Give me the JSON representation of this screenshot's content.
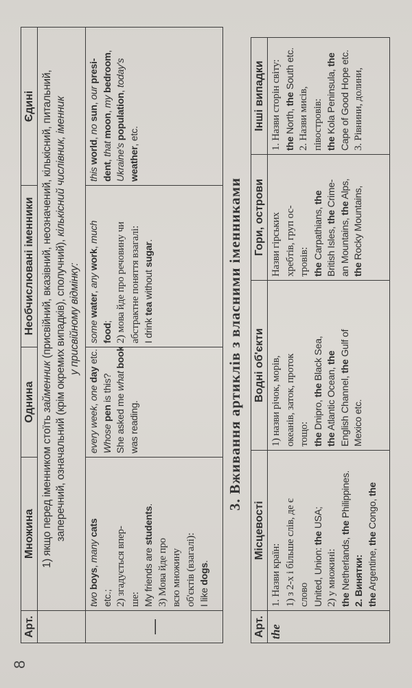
{
  "page_number": "8",
  "table1": {
    "headers": [
      "Арт.",
      "Множина",
      "Однина",
      "Необчислювані іменники",
      "Єдині"
    ],
    "span_row": [
      [
        {
          "t": "1) якщо перед іменником стоїть ",
          "s": ""
        },
        {
          "t": "займенник",
          "s": "i"
        },
        {
          "t": " (присвійний, вказівний, неозначений, кількісний, питальний,",
          "s": ""
        }
      ],
      [
        {
          "t": "заперечний, означальний (крім окремих випадків), сполучний), ",
          "s": ""
        },
        {
          "t": "кількісний числівник, іменник",
          "s": "i"
        }
      ],
      [
        {
          "t": "у присвійному відмінку:",
          "s": "i"
        }
      ]
    ],
    "row_article": "—",
    "cells": [
      [
        [
          {
            "t": "two ",
            "s": "i"
          },
          {
            "t": "boys",
            "s": "b"
          },
          {
            "t": ", ",
            "s": ""
          },
          {
            "t": "many ",
            "s": "i"
          },
          {
            "t": "cats",
            "s": "b"
          }
        ],
        [
          {
            "t": "etc.;",
            "s": ""
          }
        ],
        [
          {
            "t": "2) згадується впер-",
            "s": "serif"
          }
        ],
        [
          {
            "t": "ше:",
            "s": "serif"
          }
        ],
        [
          {
            "t": "My friends are ",
            "s": ""
          },
          {
            "t": "students",
            "s": "b"
          },
          {
            "t": ".",
            "s": ""
          }
        ],
        [
          {
            "t": "3) Мова йде про",
            "s": "serif"
          }
        ],
        [
          {
            "t": "всю множину",
            "s": "serif"
          }
        ],
        [
          {
            "t": "об'єктів (взагалі):",
            "s": "serif"
          }
        ],
        [
          {
            "t": "I like ",
            "s": ""
          },
          {
            "t": "dogs",
            "s": "b"
          },
          {
            "t": ".",
            "s": ""
          }
        ]
      ],
      [
        [
          {
            "t": "every week",
            "s": "i"
          },
          {
            "t": ", ",
            "s": ""
          },
          {
            "t": "one ",
            "s": "i"
          },
          {
            "t": "day",
            "s": "b"
          },
          {
            "t": " etc.",
            "s": ""
          }
        ],
        [
          {
            "t": "Whose ",
            "s": "i"
          },
          {
            "t": "pen",
            "s": "b"
          },
          {
            "t": " is this?",
            "s": ""
          }
        ],
        [
          {
            "t": "She asked me ",
            "s": ""
          },
          {
            "t": "what ",
            "s": "i"
          },
          {
            "t": "book",
            "s": "b"
          },
          {
            "t": " I",
            "s": ""
          }
        ],
        [
          {
            "t": "was reading.",
            "s": ""
          }
        ]
      ],
      [
        [
          {
            "t": "some ",
            "s": "i"
          },
          {
            "t": "water",
            "s": "b"
          },
          {
            "t": ", ",
            "s": ""
          },
          {
            "t": "any ",
            "s": "i"
          },
          {
            "t": "work",
            "s": "b"
          },
          {
            "t": ", ",
            "s": ""
          },
          {
            "t": "much",
            "s": "i"
          }
        ],
        [
          {
            "t": "food",
            "s": "b"
          },
          {
            "t": ";",
            "s": ""
          }
        ],
        [
          {
            "t": "2) мова йде про речовину чи",
            "s": "serif"
          }
        ],
        [
          {
            "t": "абстрактне поняття взагалі:",
            "s": "serif"
          }
        ],
        [
          {
            "t": "I drink ",
            "s": ""
          },
          {
            "t": "tea",
            "s": "b"
          },
          {
            "t": " without ",
            "s": ""
          },
          {
            "t": "sugar",
            "s": "b"
          },
          {
            "t": ".",
            "s": ""
          }
        ]
      ],
      [
        [
          {
            "t": "this ",
            "s": "i"
          },
          {
            "t": "world",
            "s": "b"
          },
          {
            "t": ", ",
            "s": ""
          },
          {
            "t": "no ",
            "s": "i"
          },
          {
            "t": "sun",
            "s": "b"
          },
          {
            "t": ", ",
            "s": ""
          },
          {
            "t": "our ",
            "s": "i"
          },
          {
            "t": "presi-",
            "s": "b"
          }
        ],
        [
          {
            "t": "dent",
            "s": "b"
          },
          {
            "t": ", ",
            "s": ""
          },
          {
            "t": "that ",
            "s": "i"
          },
          {
            "t": "moon",
            "s": "b"
          },
          {
            "t": ", ",
            "s": ""
          },
          {
            "t": "my ",
            "s": "i"
          },
          {
            "t": "bedroom",
            "s": "b"
          },
          {
            "t": ",",
            "s": ""
          }
        ],
        [
          {
            "t": "Ukraine's ",
            "s": "i"
          },
          {
            "t": "population",
            "s": "b"
          },
          {
            "t": ", ",
            "s": ""
          },
          {
            "t": "today's",
            "s": "i"
          }
        ],
        [
          {
            "t": "weather",
            "s": "b"
          },
          {
            "t": ", etc.",
            "s": ""
          }
        ]
      ]
    ]
  },
  "section_title": "3. Вживання артиклів з власними іменниками",
  "table2": {
    "headers": [
      "Арт.",
      "Місцевості",
      "Водні об'єкти",
      "Гори, острови",
      "Інші випадки"
    ],
    "row_article": "the",
    "cells": [
      [
        [
          {
            "t": "1. Назви країн:",
            "s": "serif"
          }
        ],
        [
          {
            "t": "1) з 2-х і більше слів, де є",
            "s": "serif"
          }
        ],
        [
          {
            "t": "слово",
            "s": "serif"
          }
        ],
        [
          {
            "t": "United, Union: ",
            "s": ""
          },
          {
            "t": "the",
            "s": "b"
          },
          {
            "t": " USA;",
            "s": ""
          }
        ],
        [
          {
            "t": "2) у множині:",
            "s": "serif"
          }
        ],
        [
          {
            "t": "the",
            "s": "b"
          },
          {
            "t": " Netherlands, ",
            "s": ""
          },
          {
            "t": "the",
            "s": "b"
          },
          {
            "t": " Philippines.",
            "s": ""
          }
        ],
        [
          {
            "t": "2. Винятки:",
            "s": "b"
          }
        ],
        [
          {
            "t": "the",
            "s": "b"
          },
          {
            "t": " Argentine,  ",
            "s": ""
          },
          {
            "t": "the",
            "s": "b"
          },
          {
            "t": " Congo, ",
            "s": ""
          },
          {
            "t": "the",
            "s": "b"
          }
        ]
      ],
      [
        [
          {
            "t": "1) назви річок, морів,",
            "s": "serif"
          }
        ],
        [
          {
            "t": "океанів, заток, проток",
            "s": "serif"
          }
        ],
        [
          {
            "t": "тощо:",
            "s": "serif"
          }
        ],
        [
          {
            "t": "the",
            "s": "b"
          },
          {
            "t": " Dnipro, ",
            "s": ""
          },
          {
            "t": "the",
            "s": "b"
          },
          {
            "t": " Black Sea,",
            "s": ""
          }
        ],
        [
          {
            "t": "the",
            "s": "b"
          },
          {
            "t": " Atlantic Ocean, ",
            "s": ""
          },
          {
            "t": "the",
            "s": "b"
          }
        ],
        [
          {
            "t": "English Channel, ",
            "s": ""
          },
          {
            "t": "the",
            "s": "b"
          },
          {
            "t": " Gulf of",
            "s": ""
          }
        ],
        [
          {
            "t": "Mexico etc.",
            "s": ""
          }
        ]
      ],
      [
        [
          {
            "t": "Назви гірських",
            "s": "serif"
          }
        ],
        [
          {
            "t": "хребтів, груп ос-",
            "s": "serif"
          }
        ],
        [
          {
            "t": "тровів:",
            "s": "serif"
          }
        ],
        [
          {
            "t": "the",
            "s": "b"
          },
          {
            "t": " Carpathians, ",
            "s": ""
          },
          {
            "t": "the",
            "s": "b"
          }
        ],
        [
          {
            "t": "British Isles, ",
            "s": ""
          },
          {
            "t": "the",
            "s": "b"
          },
          {
            "t": " Crime-",
            "s": ""
          }
        ],
        [
          {
            "t": "an Mountains, ",
            "s": ""
          },
          {
            "t": "the",
            "s": "b"
          },
          {
            "t": " Alps,",
            "s": ""
          }
        ],
        [
          {
            "t": "the",
            "s": "b"
          },
          {
            "t": " Rocky Mountains,",
            "s": ""
          }
        ]
      ],
      [
        [
          {
            "t": "1. Назви сторін світу:",
            "s": "serif"
          }
        ],
        [
          {
            "t": "the",
            "s": "b"
          },
          {
            "t": " North, ",
            "s": ""
          },
          {
            "t": "the",
            "s": "b"
          },
          {
            "t": " South etc.",
            "s": ""
          }
        ],
        [
          {
            "t": "2. Назви мисів,",
            "s": "serif"
          }
        ],
        [
          {
            "t": "півостровів:",
            "s": "serif"
          }
        ],
        [
          {
            "t": "the",
            "s": "b"
          },
          {
            "t": " Kola Peninsula, ",
            "s": ""
          },
          {
            "t": "the",
            "s": "b"
          }
        ],
        [
          {
            "t": "Cape of Good Hope etc.",
            "s": ""
          }
        ],
        [
          {
            "t": "3. Рівнини, долини,",
            "s": "serif"
          }
        ]
      ]
    ]
  }
}
